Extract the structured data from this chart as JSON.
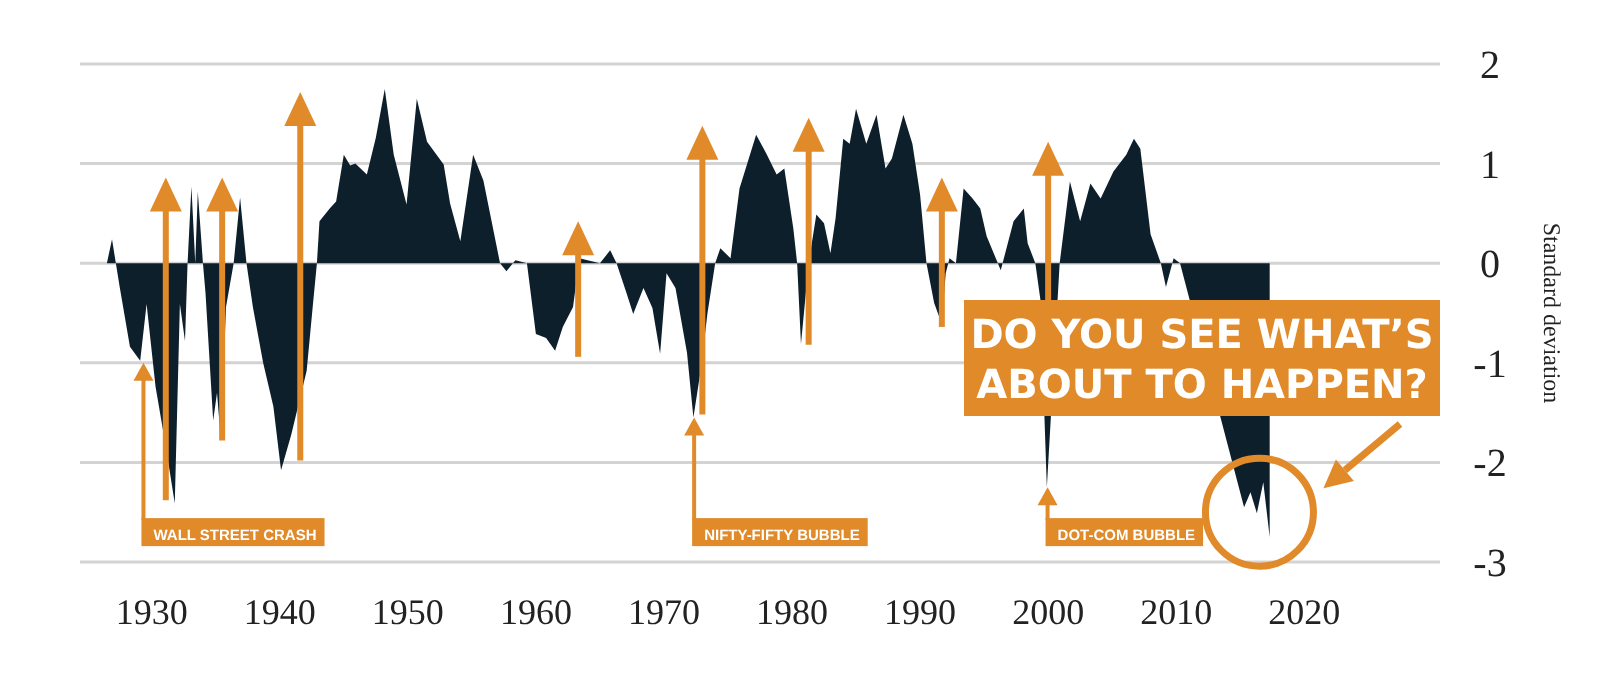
{
  "chart_data": {
    "type": "area",
    "ylabel": "Standard deviation",
    "x": [
      1926.5,
      1926.9,
      1927.2,
      1927.5,
      1928.3,
      1929.1,
      1929.6,
      1930.3,
      1931.1,
      1931.8,
      1932.2,
      1932.6,
      1932.8,
      1933.1,
      1933.4,
      1933.6,
      1934.0,
      1934.2,
      1934.8,
      1935.1,
      1935.4,
      1935.8,
      1936.4,
      1936.9,
      1937.4,
      1937.9,
      1938.7,
      1939.5,
      1940.1,
      1940.9,
      1942.1,
      1942.6,
      1942.9,
      1943.1,
      1943.9,
      1944.4,
      1945.0,
      1945.5,
      1945.9,
      1946.8,
      1947.5,
      1948.2,
      1948.9,
      1949.9,
      1950.7,
      1951.5,
      1952.8,
      1953.3,
      1954.1,
      1955.1,
      1955.9,
      1957.2,
      1957.7,
      1958.4,
      1959.3,
      1960.0,
      1960.8,
      1961.5,
      1962.1,
      1962.9,
      1963.4,
      1965.0,
      1965.8,
      1966.3,
      1967.1,
      1967.6,
      1968.4,
      1969.1,
      1969.7,
      1970.2,
      1970.9,
      1971.8,
      1972.3,
      1972.9,
      1973.4,
      1974.0,
      1974.4,
      1975.2,
      1975.9,
      1977.2,
      1978.0,
      1978.8,
      1979.4,
      1980.1,
      1980.4,
      1980.7,
      1981.3,
      1981.9,
      1982.5,
      1983.0,
      1983.4,
      1984.0,
      1984.5,
      1985.0,
      1985.8,
      1986.6,
      1987.3,
      1987.8,
      1988.7,
      1989.4,
      1990.0,
      1990.5,
      1991.1,
      1991.7,
      1992.0,
      1992.3,
      1992.8,
      1993.4,
      1994.1,
      1994.7,
      1995.2,
      1996.3,
      1997.3,
      1998.1,
      1998.4,
      1999.0,
      1999.4,
      1999.9,
      2000.9,
      2001.7,
      2002.5,
      2003.3,
      2004.1,
      2005.1,
      2006.1,
      2006.7,
      2007.2,
      2008.0,
      2008.8,
      2009.2,
      2009.8,
      2010.3,
      2015.3,
      2015.8,
      2016.3,
      2016.8,
      2017.3
    ],
    "series": [
      {
        "color": "#0e1f2c",
        "values": [
          0,
          0.24,
          0,
          -0.24,
          -0.84,
          -0.98,
          -0.41,
          -1.24,
          -1.84,
          -2.41,
          -0.41,
          -0.78,
          0,
          0.77,
          0,
          0.72,
          0,
          -0.3,
          -1.58,
          -1.3,
          -1.78,
          -0.44,
          0,
          0.66,
          0,
          -0.44,
          -1.0,
          -1.44,
          -2.08,
          -1.72,
          -1.08,
          -0.4,
          0,
          0.42,
          0.55,
          0.62,
          1.09,
          0.98,
          1.0,
          0.89,
          1.26,
          1.75,
          1.09,
          0.59,
          1.65,
          1.22,
          0.99,
          0.6,
          0.22,
          1.09,
          0.83,
          0,
          -0.08,
          0.03,
          0,
          -0.71,
          -0.75,
          -0.88,
          -0.64,
          -0.44,
          0.05,
          0,
          0.13,
          0,
          -0.31,
          -0.51,
          -0.25,
          -0.45,
          -0.91,
          -0.1,
          -0.25,
          -0.9,
          -1.55,
          -1.05,
          -0.5,
          0,
          0.15,
          0.05,
          0.75,
          1.29,
          1.1,
          0.89,
          0.95,
          0.35,
          0,
          -0.81,
          0,
          0.49,
          0.4,
          0.1,
          0.45,
          1.25,
          1.2,
          1.55,
          1.2,
          1.49,
          0.95,
          1.05,
          1.49,
          1.2,
          0.69,
          0,
          -0.4,
          -0.61,
          -0.1,
          0.05,
          0,
          0.75,
          0.65,
          0.55,
          0.27,
          -0.07,
          0.42,
          0.55,
          0.2,
          0,
          -0.37,
          -2.25,
          0,
          0.82,
          0.42,
          0.8,
          0.65,
          0.92,
          1.09,
          1.25,
          1.15,
          0.29,
          0,
          -0.24,
          0.05,
          0,
          -2.45,
          -2.3,
          -2.51,
          -2.2,
          -2.75
        ]
      }
    ],
    "xlim": [
      1924.4,
      2030.6
    ],
    "ylim": [
      -3,
      2
    ],
    "xticks": [
      1930,
      1940,
      1950,
      1960,
      1970,
      1980,
      1990,
      2000,
      2010,
      2020
    ],
    "yticks": [
      -3,
      -2,
      -1,
      0,
      1,
      2
    ],
    "grid": "y",
    "annotations": [
      {
        "text": "WALL STREET CRASH",
        "x": 1929.2,
        "y": -1.0
      },
      {
        "text": "NIFTY-FIFTY BUBBLE",
        "x": 1972.2,
        "y": -1.55
      },
      {
        "text": "DOT-COM BUBBLE",
        "x": 1999.8,
        "y": -2.25
      },
      {
        "text": "DO YOU SEE WHAT’S ABOUT TO HAPPEN?",
        "x": 2016.5,
        "y": -2.5
      }
    ]
  }
}
